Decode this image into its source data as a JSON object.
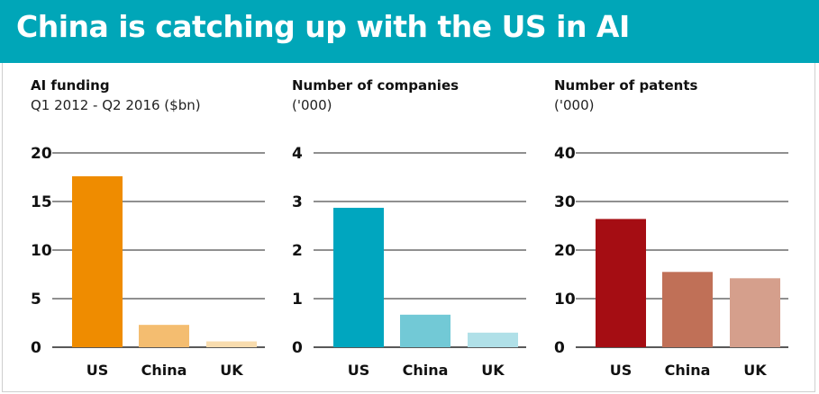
{
  "banner": {
    "title": "China is catching up with the US in AI",
    "color": "#00a6b8"
  },
  "chart_data": [
    {
      "type": "bar",
      "title": "AI funding",
      "subtitle": "Q1 2012 - Q2 2016 ($bn)",
      "categories": [
        "US",
        "China",
        "UK"
      ],
      "values": [
        17.6,
        2.3,
        0.6
      ],
      "colors": [
        "#ef8c00",
        "#f4bd70",
        "#f8dcae"
      ],
      "ylim": [
        0,
        20
      ],
      "yticks": [
        "0",
        "5",
        "10",
        "15",
        "20"
      ],
      "grid": true
    },
    {
      "type": "bar",
      "title": "Number of companies",
      "subtitle": "('000)",
      "categories": [
        "US",
        "China",
        "UK"
      ],
      "values": [
        2.87,
        0.67,
        0.3
      ],
      "colors": [
        "#00a6bf",
        "#72c9d6",
        "#b0e0e8"
      ],
      "ylim": [
        0,
        4
      ],
      "yticks": [
        "0",
        "1",
        "2",
        "3",
        "4"
      ],
      "grid": true
    },
    {
      "type": "bar",
      "title": "Number of patents",
      "subtitle": "('000)",
      "categories": [
        "US",
        "China",
        "UK"
      ],
      "values": [
        26.4,
        15.5,
        14.2
      ],
      "colors": [
        "#a50d13",
        "#c07057",
        "#d59f8c"
      ],
      "ylim": [
        0,
        40
      ],
      "yticks": [
        "0",
        "10",
        "20",
        "30",
        "40"
      ],
      "grid": true
    }
  ]
}
